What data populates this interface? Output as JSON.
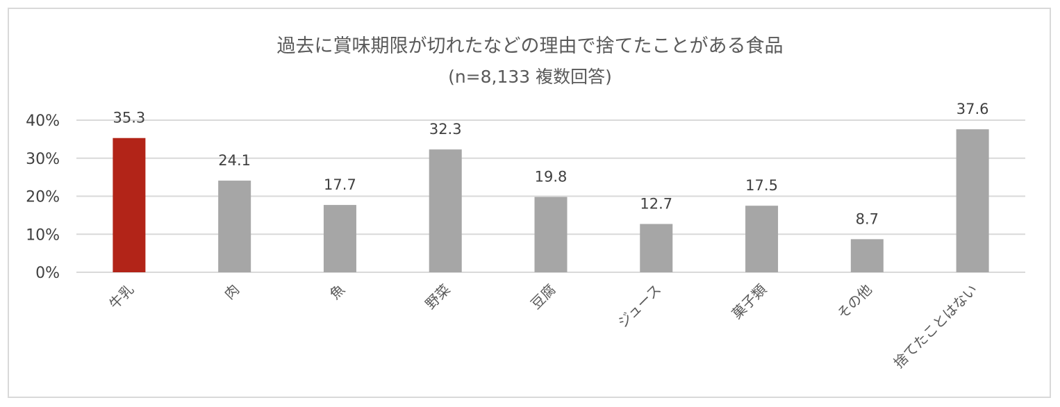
{
  "chart_data": {
    "type": "bar",
    "title": "過去に賞味期限が切れたなどの理由で捨てたことがある食品",
    "subtitle": "(n=8,133 複数回答)",
    "categories": [
      "牛乳",
      "肉",
      "魚",
      "野菜",
      "豆腐",
      "ジュース",
      "菓子類",
      "その他",
      "捨てたことはない"
    ],
    "values": [
      35.3,
      24.1,
      17.7,
      32.3,
      19.8,
      12.7,
      17.5,
      8.7,
      37.6
    ],
    "data_labels": [
      "35.3",
      "24.1",
      "17.7",
      "32.3",
      "19.8",
      "12.7",
      "17.5",
      "8.7",
      "37.6"
    ],
    "yticks": [
      0,
      10,
      20,
      30,
      40
    ],
    "ytick_labels": [
      "0%",
      "10%",
      "20%",
      "30%",
      "40%"
    ],
    "ylim": [
      0,
      40
    ],
    "grid": true,
    "highlight_index": 0,
    "colors": {
      "highlight": "#b22418",
      "bar": "#a6a6a6",
      "grid": "#d9d9d9"
    }
  }
}
